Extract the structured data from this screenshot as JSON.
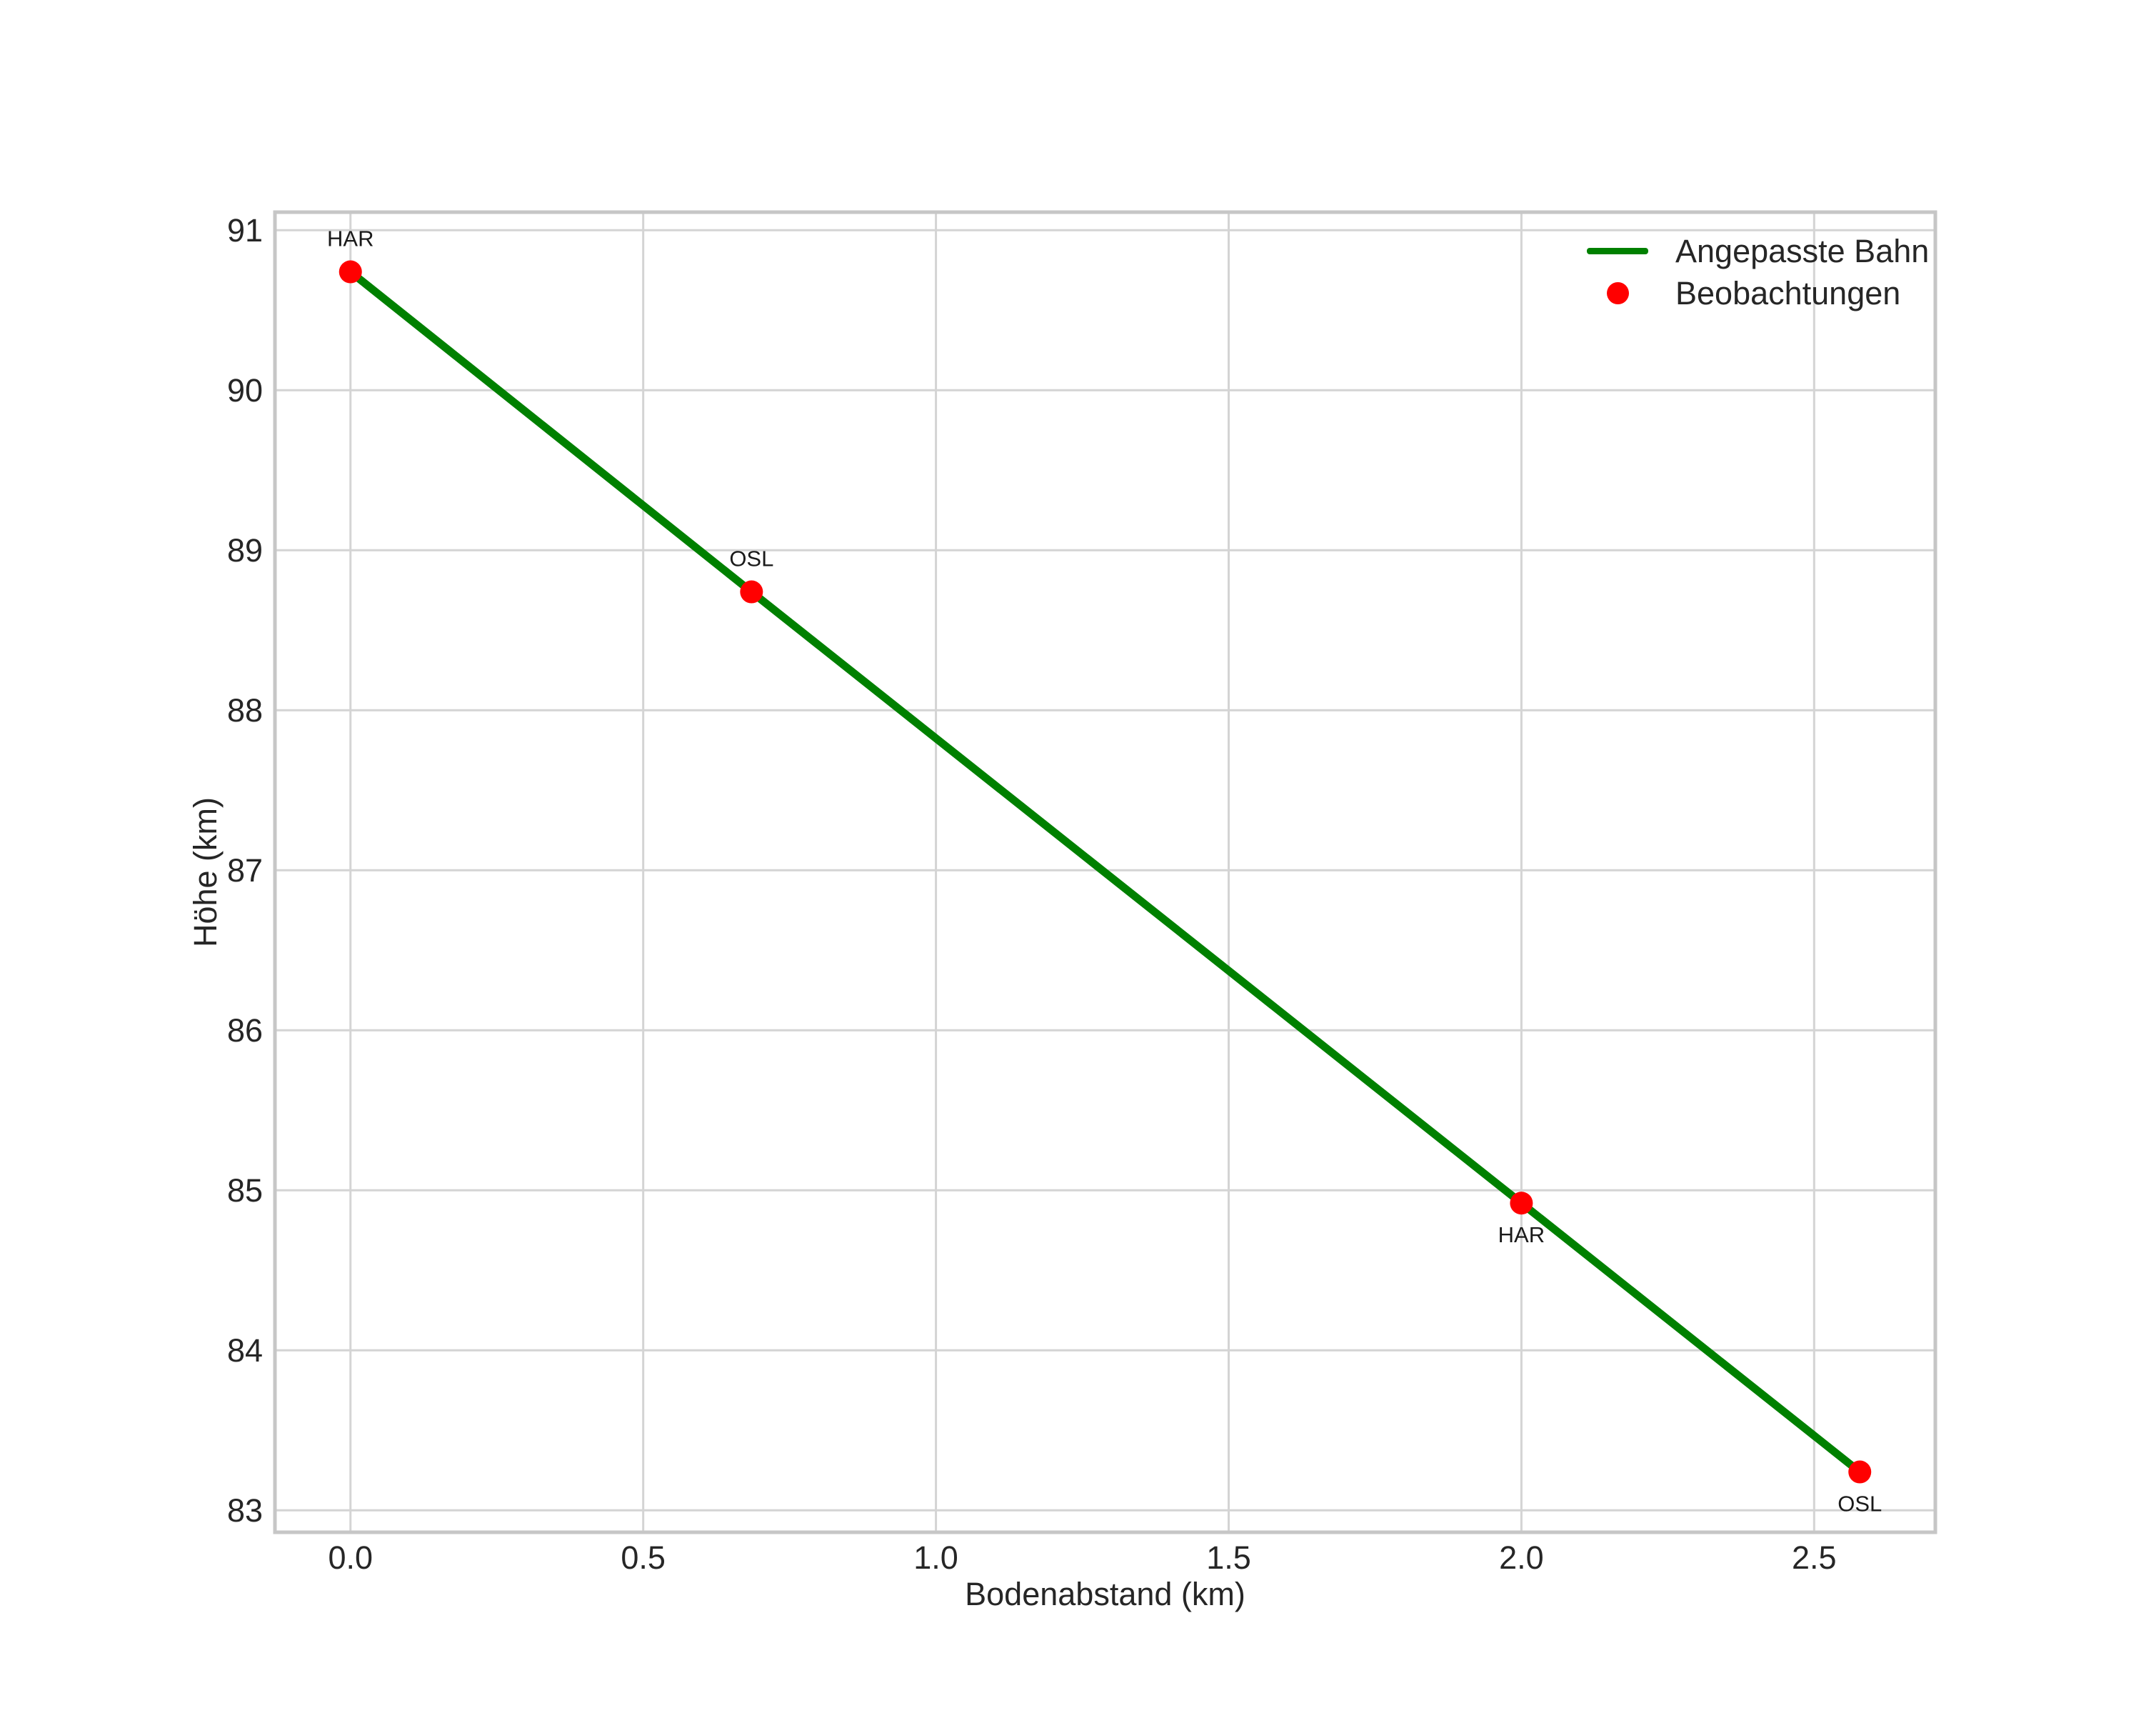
{
  "chart_data": {
    "type": "scatter",
    "title": "",
    "xlabel": "Bodenabstand (km)",
    "ylabel": "Höhe (km)",
    "xlim": [
      -0.129,
      2.707
    ],
    "ylim": [
      82.863,
      91.113
    ],
    "grid": true,
    "background_color": "#ffffff",
    "text_color": "#262626",
    "grid_color": "#d4d4d4",
    "spine_color": "#c6c6c6",
    "x_ticks": [
      {
        "v": 0.0,
        "label": "0.0"
      },
      {
        "v": 0.5,
        "label": "0.5"
      },
      {
        "v": 1.0,
        "label": "1.0"
      },
      {
        "v": 1.5,
        "label": "1.5"
      },
      {
        "v": 2.0,
        "label": "2.0"
      },
      {
        "v": 2.5,
        "label": "2.5"
      }
    ],
    "y_ticks": [
      {
        "v": 83,
        "label": "83"
      },
      {
        "v": 84,
        "label": "84"
      },
      {
        "v": 85,
        "label": "85"
      },
      {
        "v": 86,
        "label": "86"
      },
      {
        "v": 87,
        "label": "87"
      },
      {
        "v": 88,
        "label": "88"
      },
      {
        "v": 89,
        "label": "89"
      },
      {
        "v": 90,
        "label": "90"
      },
      {
        "v": 91,
        "label": "91"
      }
    ],
    "series": [
      {
        "name": "Angepasste Bahn",
        "type": "line",
        "color": "#008000",
        "x": [
          0.0,
          0.685,
          2.0,
          2.578
        ],
        "y": [
          90.74,
          88.74,
          84.92,
          83.24
        ]
      },
      {
        "name": "Beobachtungen",
        "type": "scatter",
        "color": "#ff0000",
        "marker_radius": 16,
        "points": [
          {
            "x": 0.0,
            "y": 90.74,
            "label": "HAR",
            "label_pos": "above"
          },
          {
            "x": 0.685,
            "y": 88.74,
            "label": "OSL",
            "label_pos": "above"
          },
          {
            "x": 2.0,
            "y": 84.92,
            "label": "HAR",
            "label_pos": "below"
          },
          {
            "x": 2.578,
            "y": 83.24,
            "label": "OSL",
            "label_pos": "below"
          }
        ]
      }
    ],
    "legend": {
      "position": "upper-right",
      "entries": [
        {
          "label": "Angepasste Bahn",
          "marker": "line",
          "color": "#008000"
        },
        {
          "label": "Beobachtungen",
          "marker": "dot",
          "color": "#ff0000"
        }
      ]
    }
  }
}
